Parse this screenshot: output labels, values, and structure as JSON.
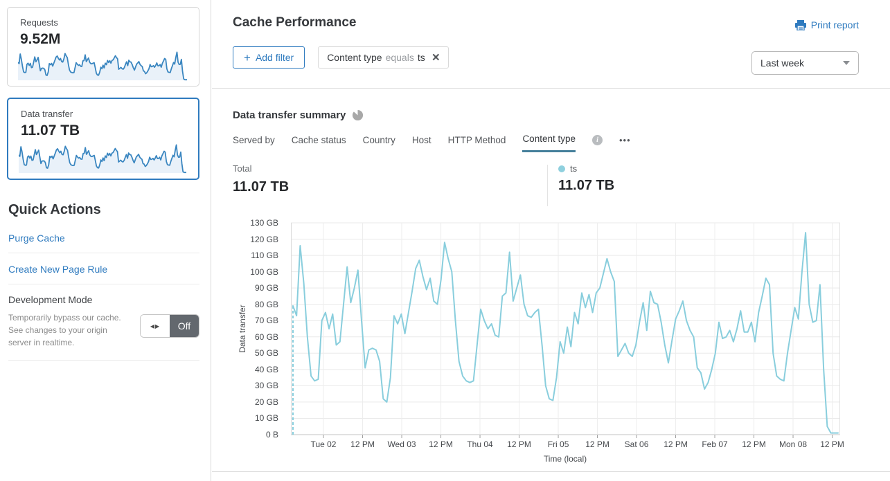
{
  "sidebar": {
    "cards": [
      {
        "label": "Requests",
        "value": "9.52M"
      },
      {
        "label": "Data transfer",
        "value": "11.07 TB",
        "selected": true
      }
    ],
    "quick_actions": {
      "title": "Quick Actions",
      "links": [
        "Purge Cache",
        "Create New Page Rule"
      ],
      "dev_mode": {
        "label": "Development Mode",
        "description": "Temporarily bypass our cache. See changes to your origin server in realtime.",
        "toggle_state": "Off"
      }
    }
  },
  "header": {
    "title": "Cache Performance",
    "print_label": "Print report",
    "add_filter_label": "Add filter",
    "filter_chip": {
      "field": "Content type",
      "operator": "equals",
      "value": "ts"
    },
    "time_range": "Last week"
  },
  "summary": {
    "title": "Data transfer summary",
    "tabs": [
      {
        "label": "Served by",
        "active": false
      },
      {
        "label": "Cache status",
        "active": false
      },
      {
        "label": "Country",
        "active": false
      },
      {
        "label": "Host",
        "active": false
      },
      {
        "label": "HTTP Method",
        "active": false
      },
      {
        "label": "Content type",
        "active": true
      }
    ],
    "total_label": "Total",
    "total_value": "11.07 TB",
    "legend": {
      "series": "ts",
      "value": "11.07 TB",
      "color": "#8fd0de"
    }
  },
  "chart_data": {
    "type": "line",
    "title": "Data transfer summary",
    "xlabel": "Time (local)",
    "ylabel": "Data transfer",
    "unit": "GB",
    "ylim": [
      0,
      130
    ],
    "grid": true,
    "legend_position": "top-right",
    "y_ticks": [
      "0 B",
      "10 GB",
      "20 GB",
      "30 GB",
      "40 GB",
      "50 GB",
      "60 GB",
      "70 GB",
      "80 GB",
      "90 GB",
      "100 GB",
      "110 GB",
      "120 GB",
      "130 GB"
    ],
    "x_ticks": [
      "Tue 02",
      "12 PM",
      "Wed 03",
      "12 PM",
      "Thu 04",
      "12 PM",
      "Fri 05",
      "12 PM",
      "Sat 06",
      "12 PM",
      "Feb 07",
      "12 PM",
      "Mon 08",
      "12 PM"
    ],
    "x_tick_start_fraction": 0.0593,
    "x_tick_step_fraction": 0.07125,
    "first_segment_dashed": true,
    "series": [
      {
        "name": "ts",
        "total": "11.07 TB",
        "color": "#89cedd",
        "values": [
          79,
          73,
          116,
          93,
          60,
          36,
          33,
          34,
          70,
          75,
          65,
          74,
          55,
          57,
          80,
          103,
          81,
          90,
          101,
          70,
          41,
          52,
          53,
          52,
          45,
          22,
          20,
          35,
          73,
          68,
          74,
          62,
          75,
          88,
          102,
          107,
          97,
          89,
          96,
          82,
          80,
          95,
          118,
          108,
          100,
          70,
          45,
          36,
          33,
          32,
          33,
          55,
          77,
          70,
          65,
          68,
          61,
          60,
          85,
          87,
          112,
          82,
          90,
          98,
          80,
          73,
          72,
          75,
          77,
          55,
          30,
          22,
          21,
          35,
          57,
          50,
          66,
          54,
          75,
          68,
          87,
          78,
          86,
          75,
          87,
          90,
          99,
          108,
          100,
          94,
          48,
          52,
          56,
          50,
          48,
          55,
          69,
          81,
          64,
          88,
          81,
          80,
          69,
          55,
          44,
          58,
          71,
          76,
          82,
          70,
          64,
          60,
          41,
          38,
          28,
          32,
          40,
          50,
          69,
          59,
          60,
          64,
          57,
          65,
          76,
          63,
          63,
          69,
          57,
          75,
          85,
          96,
          92,
          50,
          36,
          34,
          33,
          50,
          64,
          78,
          71,
          100,
          124,
          80,
          69,
          70,
          92,
          40,
          5,
          1,
          1,
          1
        ]
      }
    ]
  },
  "colors": {
    "accent_blue": "#2f7bbf",
    "chart_line": "#89cedd",
    "sparkline_stroke": "#3a86c0",
    "sparkline_fill": "#e9f1f9",
    "tab_underline": "#457f9b",
    "toggle_off_bg": "#63686e"
  },
  "icons": {
    "close": "×",
    "ellipsis": "•••",
    "toggle_arrows": "◀▶"
  }
}
